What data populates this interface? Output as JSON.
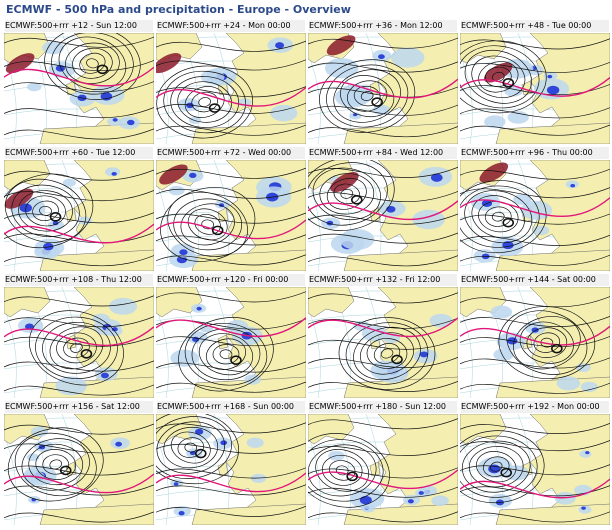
{
  "page": {
    "title": "ECMWF - 500 hPa and precipitation - Europe - Overview"
  },
  "panels": [
    {
      "title": "ECMWF:500+rrr +12 - Sun 12:00"
    },
    {
      "title": "ECMWF:500+rrr +24 - Mon 00:00"
    },
    {
      "title": "ECMWF:500+rrr +36 - Mon 12:00"
    },
    {
      "title": "ECMWF:500+rrr +48 - Tue 00:00"
    },
    {
      "title": "ECMWF:500+rrr +60 - Tue 12:00"
    },
    {
      "title": "ECMWF:500+rrr +72 - Wed 00:00"
    },
    {
      "title": "ECMWF:500+rrr +84 - Wed 12:00"
    },
    {
      "title": "ECMWF:500+rrr +96 - Thu 00:00"
    },
    {
      "title": "ECMWF:500+rrr +108 - Thu 12:00"
    },
    {
      "title": "ECMWF:500+rrr +120 - Fri 00:00"
    },
    {
      "title": "ECMWF:500+rrr +132 - Fri 12:00"
    },
    {
      "title": "ECMWF:500+rrr +144 - Sat 00:00"
    },
    {
      "title": "ECMWF:500+rrr +156 - Sat 12:00"
    },
    {
      "title": "ECMWF:500+rrr +168 - Sun 00:00"
    },
    {
      "title": "ECMWF:500+rrr +180 - Sun 12:00"
    },
    {
      "title": "ECMWF:500+rrr +192 - Mon 00:00"
    }
  ],
  "colors": {
    "title": "#2c4a8a",
    "ocean": "#ffffff",
    "land": "#f4efb0",
    "precip_light": "#bcd7ee",
    "precip_heavy": "#2f46d8",
    "jet": "#8b1a2a",
    "contour": "#111111",
    "highlight_contour": "#e0167a",
    "coastline": "#6b6b6b",
    "graticule": "#a8d4de"
  }
}
